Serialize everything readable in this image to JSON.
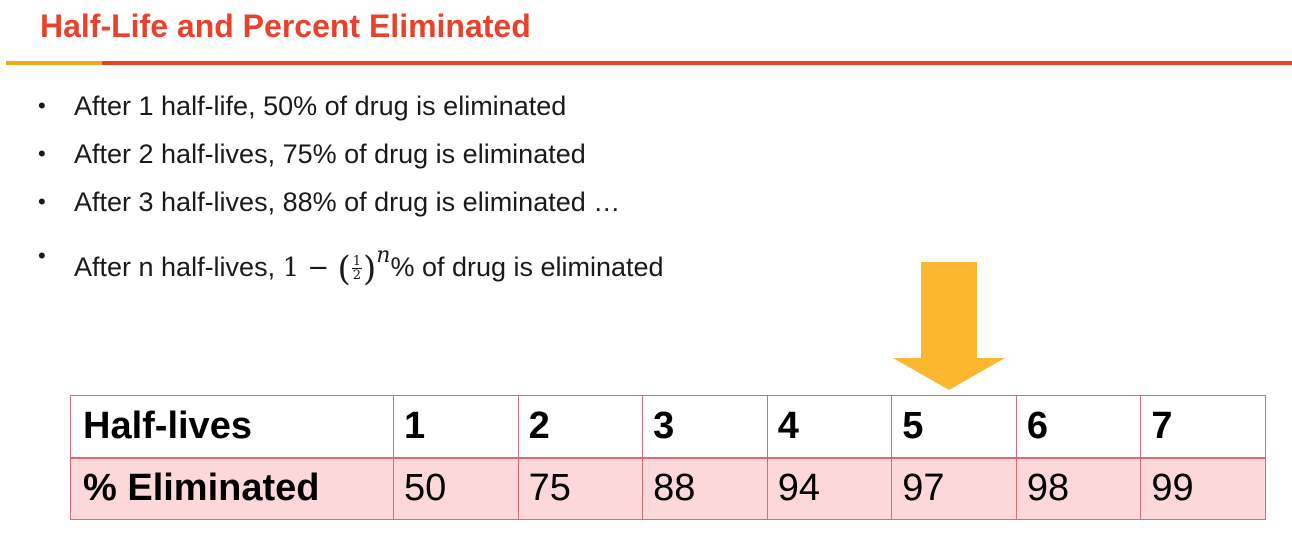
{
  "slide": {
    "title": "Half-Life and Percent Eliminated",
    "accent_colors": {
      "title_red": "#e8412c",
      "rule_orange": "#f2a81d",
      "arrow_yellow": "#fbb72f",
      "table_fill": "#fcd8da"
    }
  },
  "bullets": [
    "After 1 half-life, 50% of drug is eliminated",
    "After 2 half-lives, 75% of drug is eliminated",
    "After 3 half-lives, 88% of drug is eliminated …"
  ],
  "formula_bullet": {
    "prefix": "After n half-lives, ",
    "one": "1",
    "minus": "−",
    "frac_num": "1",
    "frac_den": "2",
    "exponent": "n",
    "suffix": "% of drug is eliminated"
  },
  "table": {
    "row1_header": "Half-lives",
    "row2_header": "% Eliminated",
    "half_lives": [
      "1",
      "2",
      "3",
      "4",
      "5",
      "6",
      "7"
    ],
    "percent_eliminated": [
      "50",
      "75",
      "88",
      "94",
      "97",
      "98",
      "99"
    ]
  },
  "arrow": {
    "icon": "down-arrow-icon",
    "points_to_half_lives": "5"
  }
}
